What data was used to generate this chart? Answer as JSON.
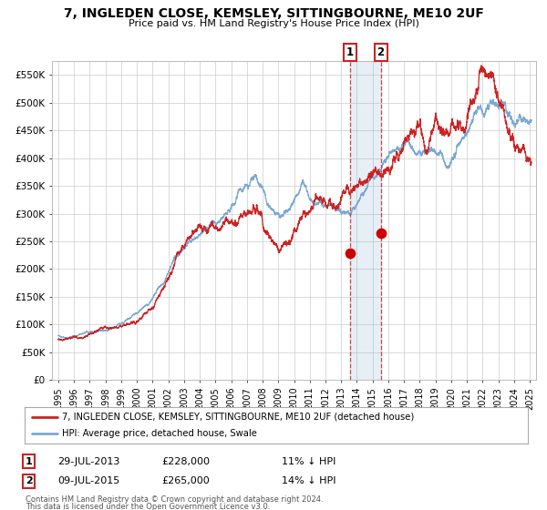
{
  "title": "7, INGLEDEN CLOSE, KEMSLEY, SITTINGBOURNE, ME10 2UF",
  "subtitle": "Price paid vs. HM Land Registry's House Price Index (HPI)",
  "legend_line1": "7, INGLEDEN CLOSE, KEMSLEY, SITTINGBOURNE, ME10 2UF (detached house)",
  "legend_line2": "HPI: Average price, detached house, Swale",
  "footer1": "Contains HM Land Registry data © Crown copyright and database right 2024.",
  "footer2": "This data is licensed under the Open Government Licence v3.0.",
  "sale1_label": "1",
  "sale1_date": "29-JUL-2013",
  "sale1_price": "£228,000",
  "sale1_hpi": "11% ↓ HPI",
  "sale2_label": "2",
  "sale2_date": "09-JUL-2015",
  "sale2_price": "£265,000",
  "sale2_hpi": "14% ↓ HPI",
  "sale1_year": 2013.57,
  "sale1_value": 228000,
  "sale2_year": 2015.52,
  "sale2_value": 265000,
  "vline1_year": 2013.57,
  "vline2_year": 2015.52,
  "hpi_color": "#7aa8d2",
  "price_color": "#cc2222",
  "dot_color": "#cc0000",
  "background_color": "#ffffff",
  "grid_color": "#cccccc",
  "ylim": [
    0,
    575000
  ],
  "xlim_start": 1994.6,
  "xlim_end": 2025.4,
  "yticks": [
    0,
    50000,
    100000,
    150000,
    200000,
    250000,
    300000,
    350000,
    400000,
    450000,
    500000,
    550000
  ],
  "ytick_labels": [
    "£0",
    "£50K",
    "£100K",
    "£150K",
    "£200K",
    "£250K",
    "£300K",
    "£350K",
    "£400K",
    "£450K",
    "£500K",
    "£550K"
  ]
}
